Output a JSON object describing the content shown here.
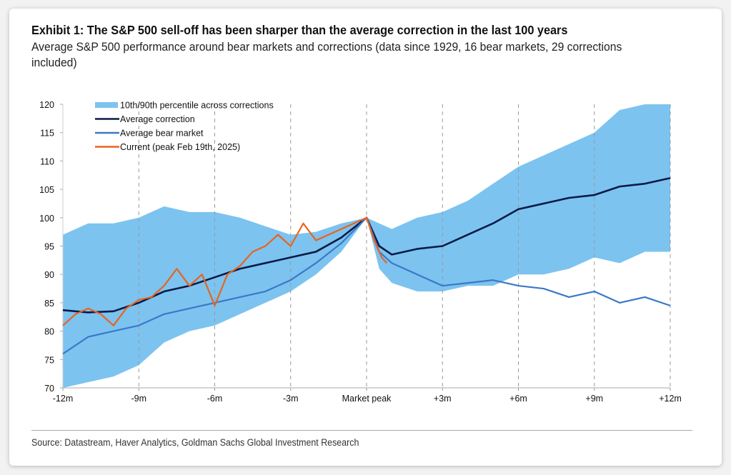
{
  "title": "Exhibit 1: The S&P 500 sell-off has been sharper than the average correction in the last 100 years",
  "subtitle": "Average S&P 500 performance around bear markets and corrections (data since 1929, 16 bear markets, 29 corrections included)",
  "source": "Source: Datastream, Haver Analytics, Goldman Sachs Global Investment Research",
  "chart_data": {
    "type": "line",
    "xlabel": "",
    "ylabel": "",
    "xlim": [
      -12,
      12
    ],
    "ylim": [
      70,
      120
    ],
    "x_ticks": [
      -12,
      -9,
      -6,
      -3,
      0,
      3,
      6,
      9,
      12
    ],
    "x_tick_labels": [
      "-12m",
      "-9m",
      "-6m",
      "-3m",
      "Market peak",
      "+3m",
      "+6m",
      "+9m",
      "+12m"
    ],
    "y_ticks": [
      70,
      75,
      80,
      85,
      90,
      95,
      100,
      105,
      110,
      115,
      120
    ],
    "legend_position": "top-left",
    "grid": "vertical dashed",
    "band": {
      "name": "10th/90th percentile across corrections",
      "color": "#7cc3f0",
      "x": [
        -12,
        -11,
        -10,
        -9,
        -8,
        -7,
        -6,
        -5,
        -4,
        -3,
        -2,
        -1,
        0,
        0.5,
        1,
        2,
        3,
        4,
        5,
        6,
        7,
        8,
        9,
        10,
        11,
        12
      ],
      "upper": [
        97,
        99,
        99,
        100,
        102,
        101,
        101,
        100,
        98.5,
        97,
        97.5,
        99,
        100,
        99,
        98,
        100,
        101,
        103,
        106,
        109,
        111,
        113,
        115,
        119,
        120,
        120
      ],
      "lower": [
        70,
        71,
        72,
        74,
        78,
        80,
        81,
        83,
        85,
        87,
        90,
        94,
        100,
        91,
        88.5,
        87,
        87,
        88,
        88,
        90,
        90,
        91,
        93,
        92,
        94,
        94
      ]
    },
    "series": [
      {
        "name": "Average correction",
        "color": "#0b1a45",
        "x": [
          -12,
          -11,
          -10,
          -9,
          -8,
          -7,
          -6,
          -5,
          -4,
          -3,
          -2,
          -1,
          0,
          0.5,
          1,
          2,
          3,
          4,
          5,
          6,
          7,
          8,
          9,
          10,
          11,
          12
        ],
        "y": [
          83.7,
          83.3,
          83.5,
          85,
          87,
          88,
          89.5,
          91,
          92,
          93,
          94,
          96.5,
          100,
          95,
          93.5,
          94.5,
          95,
          97,
          99,
          101.5,
          102.5,
          103.5,
          104,
          105.5,
          106,
          107
        ]
      },
      {
        "name": "Average bear market",
        "color": "#3a78c8",
        "x": [
          -12,
          -11,
          -10,
          -9,
          -8,
          -7,
          -6,
          -5,
          -4,
          -3,
          -2,
          -1,
          0,
          0.5,
          1,
          2,
          3,
          4,
          5,
          6,
          7,
          8,
          9,
          10,
          11,
          12
        ],
        "y": [
          76,
          79,
          80,
          81,
          83,
          84,
          85,
          86,
          87,
          89,
          92,
          95.5,
          100,
          94,
          92,
          90,
          88,
          88.5,
          89,
          88,
          87.5,
          86,
          87,
          85,
          86,
          84.5
        ]
      },
      {
        "name": "Current (peak Feb 19th, 2025)",
        "color": "#e8641e",
        "x": [
          -12,
          -11.5,
          -11,
          -10.5,
          -10,
          -9.5,
          -9,
          -8.5,
          -8,
          -7.5,
          -7,
          -6.5,
          -6,
          -5.5,
          -5,
          -4.5,
          -4,
          -3.5,
          -3,
          -2.5,
          -2,
          -1.5,
          -1,
          -0.5,
          0,
          0.3,
          0.6,
          0.8
        ],
        "y": [
          81,
          83,
          84,
          83,
          81,
          84,
          85.5,
          86,
          88,
          91,
          88,
          90,
          84.5,
          90,
          91.5,
          94,
          95,
          97,
          95,
          99,
          96,
          97,
          98,
          99,
          100,
          96,
          93,
          92
        ]
      }
    ]
  }
}
